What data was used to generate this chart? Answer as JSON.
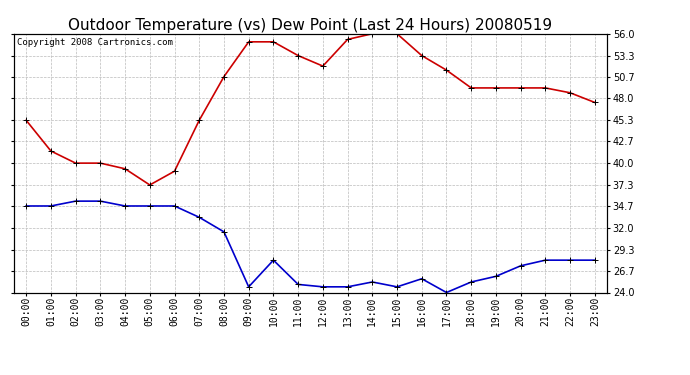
{
  "title": "Outdoor Temperature (vs) Dew Point (Last 24 Hours) 20080519",
  "copyright": "Copyright 2008 Cartronics.com",
  "hours": [
    "00:00",
    "01:00",
    "02:00",
    "03:00",
    "04:00",
    "05:00",
    "06:00",
    "07:00",
    "08:00",
    "09:00",
    "10:00",
    "11:00",
    "12:00",
    "13:00",
    "14:00",
    "15:00",
    "16:00",
    "17:00",
    "18:00",
    "19:00",
    "20:00",
    "21:00",
    "22:00",
    "23:00"
  ],
  "temp": [
    45.3,
    41.5,
    40.0,
    40.0,
    39.3,
    37.3,
    39.0,
    45.3,
    50.7,
    55.0,
    55.0,
    53.3,
    52.0,
    55.3,
    56.0,
    56.0,
    53.3,
    51.5,
    49.3,
    49.3,
    49.3,
    49.3,
    48.7,
    47.5
  ],
  "dewpoint": [
    34.7,
    34.7,
    35.3,
    35.3,
    34.7,
    34.7,
    34.7,
    33.3,
    31.5,
    24.7,
    28.0,
    25.0,
    24.7,
    24.7,
    25.3,
    24.7,
    25.7,
    24.0,
    25.3,
    26.0,
    27.3,
    28.0,
    28.0,
    28.0
  ],
  "temp_color": "#cc0000",
  "dewpoint_color": "#0000cc",
  "bg_color": "#ffffff",
  "grid_color": "#bbbbbb",
  "ylim": [
    24.0,
    56.0
  ],
  "yticks": [
    24.0,
    26.7,
    29.3,
    32.0,
    34.7,
    37.3,
    40.0,
    42.7,
    45.3,
    48.0,
    50.7,
    53.3,
    56.0
  ],
  "title_fontsize": 11,
  "copyright_fontsize": 6.5,
  "tick_fontsize": 7,
  "marker": "+",
  "marker_size": 4,
  "line_width": 1.2
}
